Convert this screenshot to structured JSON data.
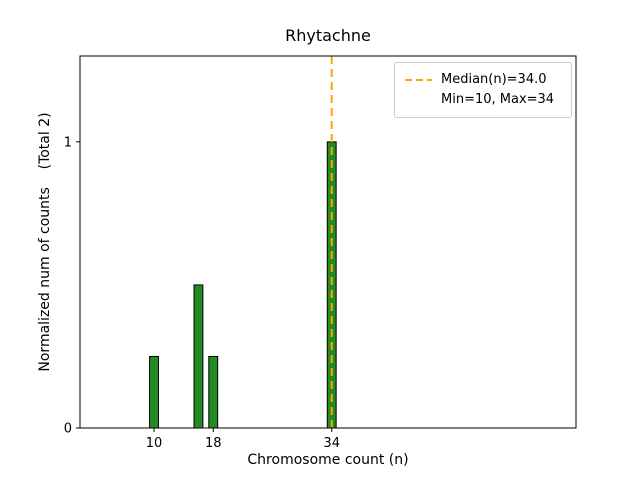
{
  "figure": {
    "title": "Rhytachne"
  },
  "legend": {
    "items": [
      {
        "swatch": "orange-dashed-line",
        "label": "Median(n)=34.0"
      },
      {
        "swatch": "none",
        "label": "Min=10, Max=34"
      }
    ]
  },
  "chart_data": {
    "type": "bar",
    "title": "Rhytachne",
    "xlabel": "Chromosome count (n)",
    "ylabel": "Normalized num of counts    (Total 2)",
    "bars": [
      {
        "x": 10,
        "height": 0.25
      },
      {
        "x": 16,
        "height": 0.5
      },
      {
        "x": 18,
        "height": 0.25
      },
      {
        "x": 34,
        "height": 1.0
      }
    ],
    "bar_width": 1.2,
    "bar_color": "#228B22",
    "bar_edge_color": "#000000",
    "median_line": {
      "x": 34,
      "color": "#FFA500",
      "style": "dashed",
      "label": "Median(n)=34.0"
    },
    "min": 10,
    "max": 34,
    "total": 2,
    "xlim": [
      0,
      67
    ],
    "ylim": [
      0,
      1.3
    ],
    "xticks": [
      10,
      18,
      34
    ],
    "yticks": [
      0,
      1
    ],
    "grid": false,
    "legend_position": "upper right"
  }
}
